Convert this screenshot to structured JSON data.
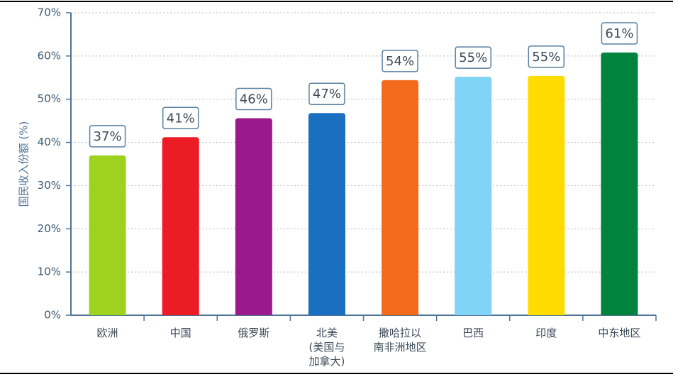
{
  "chart_data": {
    "type": "bar",
    "y_label": "国民收入份额 (%)",
    "categories": [
      "欧洲",
      "中国",
      "俄罗斯",
      "北美\n(美国与\n加拿大)",
      "撒哈拉以\n南非洲地区",
      "巴西",
      "印度",
      "中东地区"
    ],
    "values": [
      37,
      41.2,
      45.6,
      46.8,
      54.4,
      55.2,
      55.4,
      60.8
    ],
    "value_labels": [
      "37%",
      "41%",
      "46%",
      "47%",
      "54%",
      "55%",
      "55%",
      "61%"
    ],
    "colors": [
      "#9dd21e",
      "#ec1c24",
      "#9b198b",
      "#1a6fc0",
      "#f26b1d",
      "#80d4f6",
      "#ffdc00",
      "#00843d"
    ],
    "ylim": [
      0,
      70
    ],
    "yticks": [
      {
        "value": 0,
        "label": "0%"
      },
      {
        "value": 10,
        "label": "10%"
      },
      {
        "value": 20,
        "label": "20%"
      },
      {
        "value": 30,
        "label": "30%"
      },
      {
        "value": 40,
        "label": "40%"
      },
      {
        "value": 50,
        "label": "50%"
      },
      {
        "value": 60,
        "label": "60%"
      },
      {
        "value": 70,
        "label": "70%"
      }
    ],
    "grid": true
  }
}
